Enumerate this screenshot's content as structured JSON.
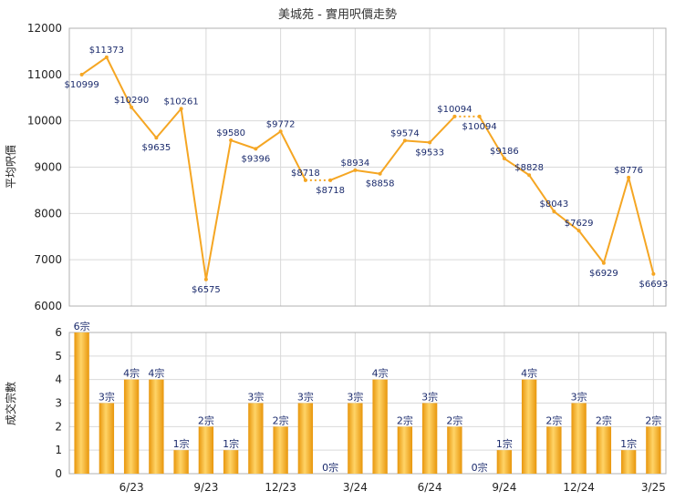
{
  "colors": {
    "line": "#f5a623",
    "bar_dark": "#e8960c",
    "bar_light": "#ffd467",
    "label": "#1a2a6c"
  },
  "chart_data": [
    {
      "type": "line",
      "title": "美城苑 - 實用呎價走勢",
      "ylabel": "平均呎價",
      "ylim": [
        6000,
        12000
      ],
      "yticks": [
        6000,
        7000,
        8000,
        9000,
        10000,
        11000,
        12000
      ],
      "grid": true,
      "points": [
        {
          "value": 10999,
          "label": "$10999"
        },
        {
          "value": 11373,
          "label": "$11373"
        },
        {
          "value": 10290,
          "label": "$10290"
        },
        {
          "value": 9635,
          "label": "$9635"
        },
        {
          "value": 10261,
          "label": "$10261"
        },
        {
          "value": 6575,
          "label": "$6575"
        },
        {
          "value": 9580,
          "label": "$9580"
        },
        {
          "value": 9396,
          "label": "$9396"
        },
        {
          "value": 9772,
          "label": "$9772"
        },
        {
          "value": 8718,
          "label": "$8718"
        },
        {
          "value": 8718,
          "label": "$8718"
        },
        {
          "value": 8934,
          "label": "$8934"
        },
        {
          "value": 8858,
          "label": "$8858"
        },
        {
          "value": 9574,
          "label": "$9574"
        },
        {
          "value": 9533,
          "label": "$9533"
        },
        {
          "value": 10094,
          "label": "$10094"
        },
        {
          "value": 10094,
          "label": "$10094"
        },
        {
          "value": 9186,
          "label": "$9186"
        },
        {
          "value": 8828,
          "label": "$8828"
        },
        {
          "value": 8043,
          "label": "$8043"
        },
        {
          "value": 7629,
          "label": "$7629"
        },
        {
          "value": 6929,
          "label": "$6929"
        },
        {
          "value": 8776,
          "label": "$8776"
        },
        {
          "value": 6693,
          "label": "$6693"
        }
      ]
    },
    {
      "type": "bar",
      "ylabel": "成交宗數",
      "ylim": [
        0,
        6
      ],
      "yticks": [
        0,
        1,
        2,
        3,
        4,
        5,
        6
      ],
      "grid": true,
      "xticks": [
        "6/23",
        "9/23",
        "12/23",
        "3/24",
        "6/24",
        "9/24",
        "12/24",
        "3/25"
      ],
      "bars": [
        {
          "value": 6,
          "label": "6宗"
        },
        {
          "value": 3,
          "label": "3宗"
        },
        {
          "value": 4,
          "label": "4宗"
        },
        {
          "value": 4,
          "label": "4宗"
        },
        {
          "value": 1,
          "label": "1宗"
        },
        {
          "value": 2,
          "label": "2宗"
        },
        {
          "value": 1,
          "label": "1宗"
        },
        {
          "value": 3,
          "label": "3宗"
        },
        {
          "value": 2,
          "label": "2宗"
        },
        {
          "value": 3,
          "label": "3宗"
        },
        {
          "value": 0,
          "label": "0宗"
        },
        {
          "value": 3,
          "label": "3宗"
        },
        {
          "value": 4,
          "label": "4宗"
        },
        {
          "value": 2,
          "label": "2宗"
        },
        {
          "value": 3,
          "label": "3宗"
        },
        {
          "value": 2,
          "label": "2宗"
        },
        {
          "value": 0,
          "label": "0宗"
        },
        {
          "value": 1,
          "label": "1宗"
        },
        {
          "value": 4,
          "label": "4宗"
        },
        {
          "value": 2,
          "label": "2宗"
        },
        {
          "value": 3,
          "label": "3宗"
        },
        {
          "value": 2,
          "label": "2宗"
        },
        {
          "value": 1,
          "label": "1宗"
        },
        {
          "value": 2,
          "label": "2宗"
        }
      ]
    }
  ]
}
